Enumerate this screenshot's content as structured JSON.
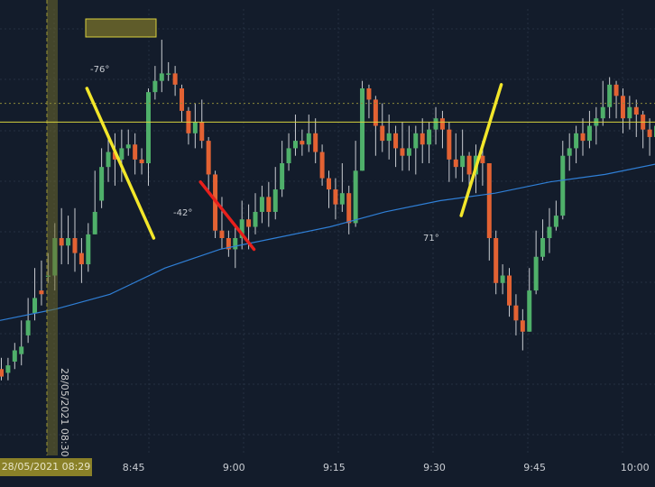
{
  "crosshair": {
    "date_label": "28/05/2021 08:29",
    "vertical_label": "28/05/2021 08:30"
  },
  "trendlines": [
    {
      "angle_label": "-76°",
      "color": "#f2e62a",
      "x0": "08:38",
      "y0": 80,
      "x1": "08:48",
      "y1": 40
    },
    {
      "angle_label": "-42°",
      "color": "#e8201c",
      "x0": "08:55",
      "y0": 55,
      "x1": "09:03",
      "y1": 37
    },
    {
      "angle_label": "71°",
      "color": "#f2e62a",
      "x0": "09:34",
      "y0": 46,
      "x1": "09:40",
      "y1": 81
    }
  ],
  "colors": {
    "up": "#4fb06a",
    "down": "#e36233",
    "wick": "#c9ccd1",
    "ma": "#2f7fd6",
    "horizontal_line": "#d6d23c",
    "background": "#131c2b"
  },
  "chart_data": {
    "type": "candlestick",
    "x_axis": {
      "tick_labels": [
        "8:45",
        "9:00",
        "9:15",
        "9:30",
        "9:45",
        "10:00"
      ],
      "range": [
        "08:25",
        "10:03"
      ]
    },
    "y_axis": {
      "range": [
        0,
        100
      ],
      "shown": false
    },
    "horizontal_line_level": 71,
    "dotted_line_level": 76,
    "candles": [
      [
        5,
        3,
        8,
        2
      ],
      [
        4,
        6,
        8,
        2
      ],
      [
        7,
        10,
        12,
        5
      ],
      [
        9,
        11,
        18,
        6
      ],
      [
        14,
        18,
        24,
        12
      ],
      [
        20,
        24,
        32,
        18
      ],
      [
        26,
        25,
        34,
        22
      ],
      [
        30,
        30,
        36,
        28
      ],
      [
        30,
        40,
        44,
        26
      ],
      [
        40,
        38,
        48,
        33
      ],
      [
        38,
        40,
        46,
        33
      ],
      [
        40,
        36,
        48,
        31
      ],
      [
        36,
        33,
        40,
        28
      ],
      [
        33,
        41,
        44,
        31
      ],
      [
        41,
        47,
        58,
        41
      ],
      [
        50,
        59,
        64,
        48
      ],
      [
        59,
        63,
        67,
        55
      ],
      [
        63,
        61,
        68,
        54
      ],
      [
        61,
        64,
        69,
        55
      ],
      [
        64,
        65,
        69,
        62
      ],
      [
        65,
        61,
        68,
        57
      ],
      [
        61,
        60,
        64,
        57
      ],
      [
        60,
        79,
        80,
        54
      ],
      [
        79,
        82,
        86,
        77
      ],
      [
        82,
        84,
        93,
        79
      ],
      [
        84,
        84,
        87,
        82
      ],
      [
        84,
        81,
        86,
        78
      ],
      [
        80,
        74,
        81,
        71
      ],
      [
        74,
        68,
        75,
        65
      ],
      [
        68,
        71,
        76,
        64
      ],
      [
        71,
        66,
        77,
        64
      ],
      [
        66,
        57,
        67,
        52
      ],
      [
        57,
        42,
        58,
        40
      ],
      [
        42,
        40,
        51,
        37
      ],
      [
        40,
        37,
        42,
        35
      ],
      [
        37,
        40,
        43,
        32
      ],
      [
        40,
        45,
        50,
        37
      ],
      [
        45,
        43,
        49,
        37
      ],
      [
        43,
        47,
        52,
        41
      ],
      [
        47,
        51,
        54,
        44
      ],
      [
        51,
        47,
        55,
        43
      ],
      [
        47,
        53,
        59,
        45
      ],
      [
        53,
        60,
        66,
        51
      ],
      [
        60,
        64,
        68,
        58
      ],
      [
        64,
        66,
        73,
        62
      ],
      [
        66,
        65,
        69,
        62
      ],
      [
        65,
        68,
        73,
        63
      ],
      [
        68,
        63,
        72,
        60
      ],
      [
        63,
        56,
        65,
        54
      ],
      [
        56,
        53,
        58,
        48
      ],
      [
        53,
        49,
        56,
        45
      ],
      [
        49,
        52,
        60,
        47
      ],
      [
        52,
        44,
        54,
        41
      ],
      [
        44,
        58,
        66,
        43
      ],
      [
        58,
        80,
        82,
        58
      ],
      [
        80,
        77,
        81,
        72
      ],
      [
        77,
        70,
        78,
        62
      ],
      [
        70,
        66,
        76,
        63
      ],
      [
        66,
        68,
        73,
        61
      ],
      [
        68,
        64,
        70,
        59
      ],
      [
        64,
        62,
        71,
        58
      ],
      [
        62,
        64,
        70,
        58
      ],
      [
        64,
        68,
        70,
        57
      ],
      [
        68,
        65,
        72,
        60
      ],
      [
        65,
        69,
        71,
        60
      ],
      [
        69,
        72,
        75,
        65
      ],
      [
        72,
        69,
        74,
        64
      ],
      [
        69,
        61,
        71,
        55
      ],
      [
        61,
        59,
        68,
        56
      ],
      [
        59,
        62,
        69,
        55
      ],
      [
        62,
        57,
        63,
        53
      ],
      [
        57,
        62,
        65,
        52
      ],
      [
        62,
        60,
        66,
        54
      ],
      [
        60,
        40,
        60,
        34
      ],
      [
        40,
        28,
        42,
        25
      ],
      [
        28,
        30,
        33,
        25
      ],
      [
        30,
        22,
        32,
        19
      ],
      [
        22,
        18,
        25,
        14
      ],
      [
        18,
        15,
        21,
        10
      ],
      [
        15,
        26,
        32,
        15
      ],
      [
        26,
        35,
        42,
        25
      ],
      [
        35,
        40,
        45,
        34
      ],
      [
        40,
        43,
        48,
        36
      ],
      [
        43,
        46,
        50,
        42
      ],
      [
        46,
        62,
        66,
        45
      ],
      [
        62,
        64,
        68,
        58
      ],
      [
        64,
        68,
        70,
        60
      ],
      [
        68,
        66,
        72,
        62
      ],
      [
        66,
        70,
        74,
        64
      ],
      [
        70,
        72,
        75,
        65
      ],
      [
        72,
        75,
        82,
        70
      ],
      [
        75,
        81,
        83,
        72
      ],
      [
        81,
        78,
        82,
        72
      ],
      [
        78,
        72,
        80,
        68
      ],
      [
        72,
        75,
        78,
        69
      ],
      [
        75,
        73,
        77,
        67
      ],
      [
        73,
        69,
        74,
        64
      ],
      [
        69,
        67,
        72,
        62
      ],
      [
        67,
        70,
        73,
        63
      ],
      [
        70,
        64,
        71,
        59
      ],
      [
        64,
        58,
        67,
        55
      ],
      [
        58,
        56,
        62,
        53
      ],
      [
        56,
        62,
        66,
        55
      ],
      [
        62,
        67,
        72,
        61
      ],
      [
        67,
        70,
        74,
        64
      ],
      [
        70,
        68,
        75,
        64
      ],
      [
        68,
        63,
        70,
        59
      ]
    ],
    "ma_points": [
      [
        0,
        18
      ],
      [
        10,
        21
      ],
      [
        20,
        25
      ],
      [
        30,
        32
      ],
      [
        40,
        37
      ],
      [
        50,
        40
      ],
      [
        60,
        43
      ],
      [
        70,
        47
      ],
      [
        80,
        50
      ],
      [
        90,
        52
      ],
      [
        100,
        55
      ],
      [
        110,
        57
      ],
      [
        120,
        60
      ],
      [
        130,
        63
      ]
    ]
  }
}
